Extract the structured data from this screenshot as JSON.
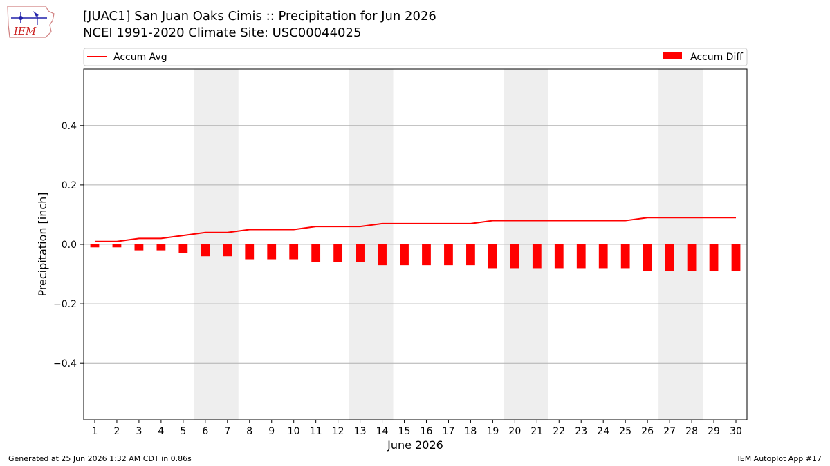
{
  "header": {
    "title_line1": "[JUAC1] San Juan Oaks Cimis :: Precipitation for Jun 2026",
    "title_line2": "NCEI 1991-2020 Climate Site: USC00044025",
    "logo_text": "IEM"
  },
  "footer": {
    "left": "Generated at 25 Jun 2026 1:32 AM CDT in 0.86s",
    "right": "IEM Autoplot App #17"
  },
  "colors": {
    "series": "#ff0000",
    "weekend_band": "#eeeeee",
    "grid": "#b0b0b0"
  },
  "chart_data": {
    "type": "bar",
    "xlabel": "June 2026",
    "ylabel": "Precipitation [inch]",
    "xlim": [
      0.5,
      30.5
    ],
    "ylim": [
      -0.59,
      0.59
    ],
    "yticks": [
      -0.4,
      -0.2,
      0.0,
      0.2,
      0.4
    ],
    "ytick_labels": [
      "−0.4",
      "−0.2",
      "0.0",
      "0.2",
      "0.4"
    ],
    "grid": "horizontal",
    "legend": {
      "left": "Accum Avg",
      "right": "Accum Diff",
      "placement": "top"
    },
    "weekend_bands": [
      [
        6,
        7
      ],
      [
        13,
        14
      ],
      [
        20,
        21
      ],
      [
        27,
        28
      ]
    ],
    "days": [
      1,
      2,
      3,
      4,
      5,
      6,
      7,
      8,
      9,
      10,
      11,
      12,
      13,
      14,
      15,
      16,
      17,
      18,
      19,
      20,
      21,
      22,
      23,
      24,
      25,
      26,
      27,
      28,
      29,
      30
    ],
    "series": [
      {
        "name": "Accum Avg",
        "type": "line",
        "values": [
          0.01,
          0.01,
          0.02,
          0.02,
          0.03,
          0.04,
          0.04,
          0.05,
          0.05,
          0.05,
          0.06,
          0.06,
          0.06,
          0.07,
          0.07,
          0.07,
          0.07,
          0.07,
          0.08,
          0.08,
          0.08,
          0.08,
          0.08,
          0.08,
          0.08,
          0.09,
          0.09,
          0.09,
          0.09,
          0.09
        ]
      },
      {
        "name": "Accum Diff",
        "type": "bar",
        "values": [
          -0.01,
          -0.01,
          -0.02,
          -0.02,
          -0.03,
          -0.04,
          -0.04,
          -0.05,
          -0.05,
          -0.05,
          -0.06,
          -0.06,
          -0.06,
          -0.07,
          -0.07,
          -0.07,
          -0.07,
          -0.07,
          -0.08,
          -0.08,
          -0.08,
          -0.08,
          -0.08,
          -0.08,
          -0.08,
          -0.09,
          -0.09,
          -0.09,
          -0.09,
          -0.09
        ]
      }
    ]
  }
}
